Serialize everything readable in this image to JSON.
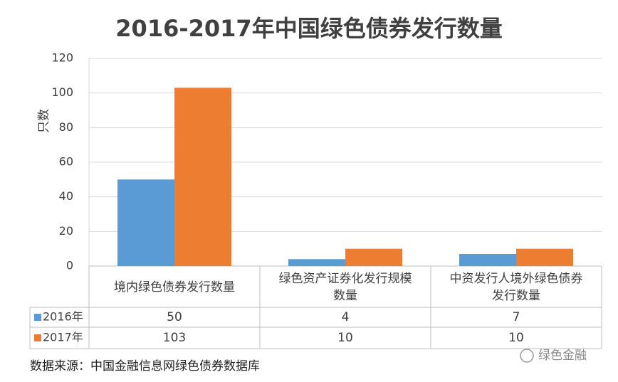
{
  "chart_data": {
    "type": "bar",
    "title": "2016-2017年中国绿色债券发行数量",
    "y_label": "只数",
    "categories": [
      "境内绿色债券发行数量",
      "绿色资产证券化发行规模数量",
      "中资发行人境外绿色债券发行数量"
    ],
    "series": [
      {
        "name": "2016年",
        "color": "#5b9bd5",
        "values": [
          50,
          4,
          7
        ]
      },
      {
        "name": "2017年",
        "color": "#ed7d31",
        "values": [
          103,
          10,
          10
        ]
      }
    ],
    "ylim": [
      0,
      120
    ],
    "yticks": [
      0,
      20,
      40,
      60,
      80,
      100,
      120
    ],
    "grid": true,
    "source": "数据来源：中国金融信息网绿色债券数据库",
    "watermark": "绿色金融"
  }
}
